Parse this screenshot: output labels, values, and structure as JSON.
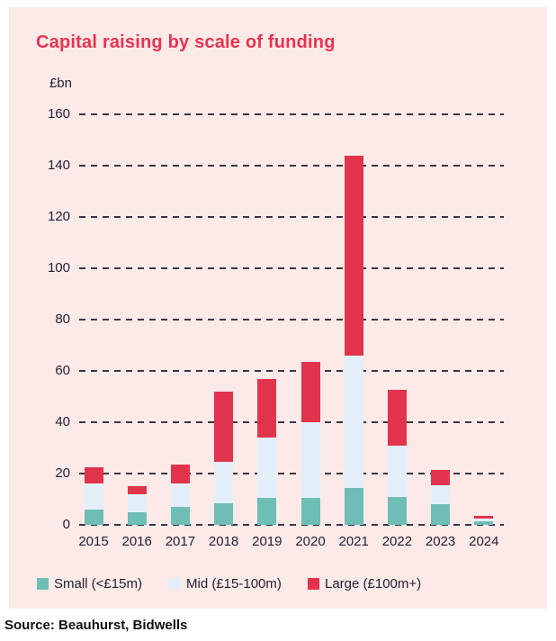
{
  "title": "Capital raising by scale of funding",
  "y_axis_unit": "£bn",
  "source": "Source: Beauhurst, Bidwells",
  "colors": {
    "page_background": "#ffffff",
    "card_background": "#fbeae7",
    "title": "#e8334f",
    "small": "#6fbeb6",
    "mid": "#e4f0f9",
    "large": "#e1334b",
    "axis_text": "#241f35",
    "gridline": "#3c3545"
  },
  "legend": [
    {
      "label": "Small (<£15m)",
      "color_key": "small"
    },
    {
      "label": "Mid (£15-100m)",
      "color_key": "mid"
    },
    {
      "label": "Large (£100m+)",
      "color_key": "large"
    }
  ],
  "chart_data": {
    "type": "bar",
    "stacked": true,
    "title": "Capital raising by scale of funding",
    "ylabel": "£bn",
    "xlabel": "",
    "ylim": [
      0,
      160
    ],
    "ytick_interval": 20,
    "grid": "horizontal-dashed",
    "legend_position": "bottom",
    "categories": [
      "2015",
      "2016",
      "2017",
      "2018",
      "2019",
      "2020",
      "2021",
      "2022",
      "2023",
      "2024"
    ],
    "series": [
      {
        "name": "Small (<£15m)",
        "color_key": "small",
        "values": [
          6,
          5,
          7,
          8.5,
          10.5,
          10.5,
          14.5,
          11,
          8,
          1.5
        ]
      },
      {
        "name": "Mid (£15-100m)",
        "color_key": "mid",
        "values": [
          10,
          7,
          9,
          16,
          23.5,
          29.5,
          51.5,
          20,
          7.5,
          1
        ]
      },
      {
        "name": "Large (£100m+)",
        "color_key": "large",
        "values": [
          6.5,
          3,
          7.5,
          27.5,
          23,
          23.5,
          78,
          21.5,
          6,
          0.9
        ]
      }
    ],
    "totals": [
      22.5,
      15,
      23.5,
      52,
      57,
      63.5,
      144,
      52.5,
      21.5,
      3.4
    ]
  }
}
